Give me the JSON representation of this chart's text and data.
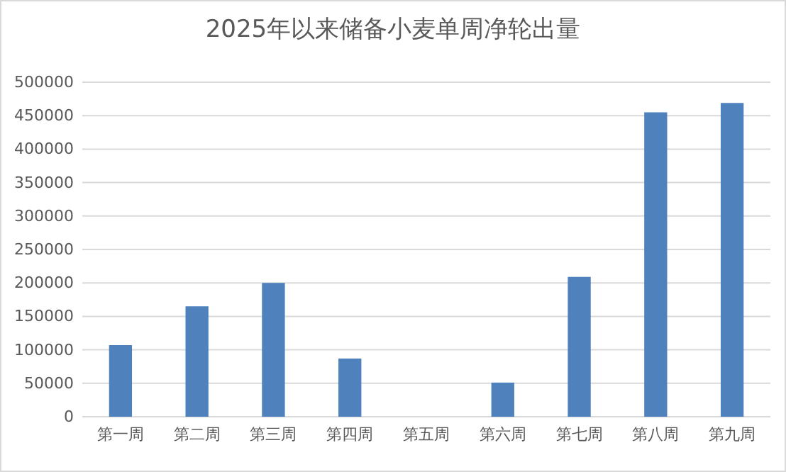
{
  "chart_data": {
    "type": "bar",
    "title": "2025年以来储备小麦单周净轮出量",
    "categories": [
      "第一周",
      "第二周",
      "第三周",
      "第四周",
      "第五周",
      "第六周",
      "第七周",
      "第八周",
      "第九周"
    ],
    "values": [
      107000,
      165000,
      200000,
      87000,
      0,
      51000,
      209000,
      455000,
      469000
    ],
    "color": "#4f81bd",
    "ylim": [
      0,
      500000
    ],
    "yticks": [
      0,
      50000,
      100000,
      150000,
      200000,
      250000,
      300000,
      350000,
      400000,
      450000,
      500000
    ],
    "grid": "y"
  }
}
